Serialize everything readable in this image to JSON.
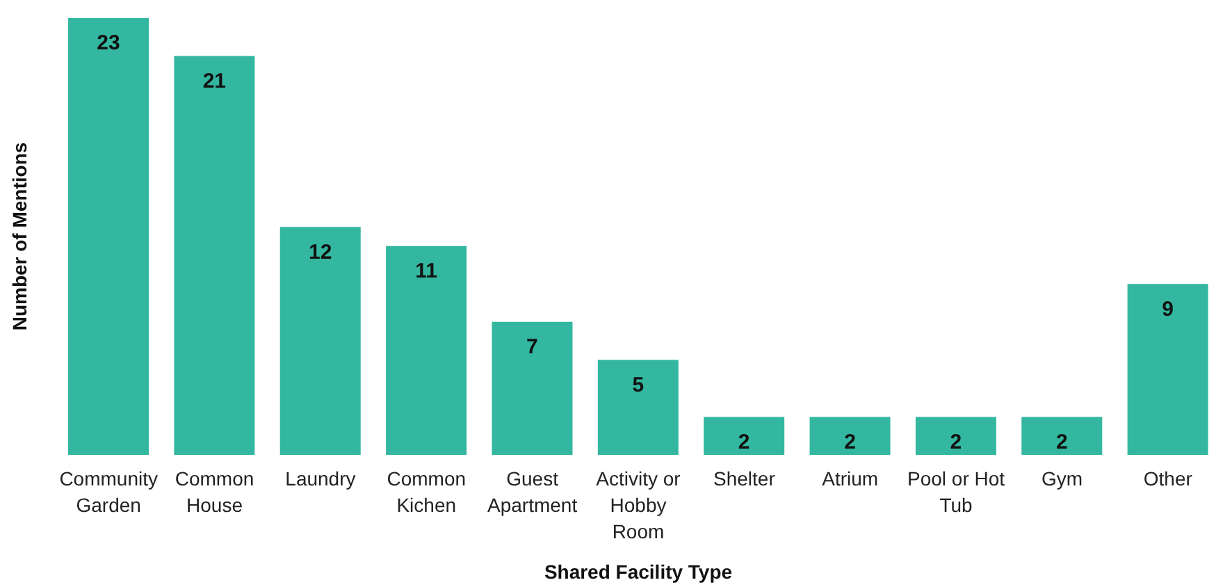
{
  "chart_data": {
    "type": "bar",
    "xlabel": "Shared Facility Type",
    "ylabel": "Number of Mentions",
    "categories": [
      "Community Garden",
      "Common House",
      "Laundry",
      "Common Kichen",
      "Guest Apartment",
      "Activity or Hobby Room",
      "Shelter",
      "Atrium",
      "Pool or Hot Tub",
      "Gym",
      "Other"
    ],
    "values": [
      23,
      21,
      12,
      11,
      7,
      5,
      2,
      2,
      2,
      2,
      9
    ],
    "color": "#33b7a0",
    "data_labels": true,
    "grid": false,
    "legend": false
  }
}
